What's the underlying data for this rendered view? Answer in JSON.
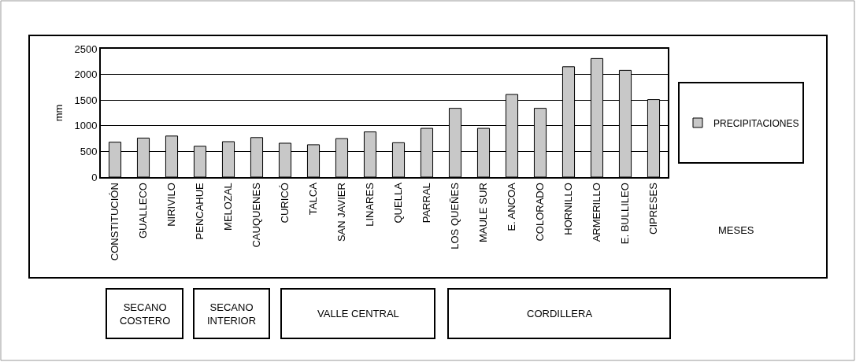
{
  "chart_data": {
    "type": "bar",
    "ylabel": "mm",
    "categories": [
      "CONSTITUCIÓN",
      "GUALLECO",
      "NIRIVILO",
      "PENCAHUE",
      "MELOZAL",
      "CAUQUENES",
      "CURICÓ",
      "TALCA",
      "SAN JAVIER",
      "LINARES",
      "QUELLA",
      "PARRAL",
      "LOS QUEÑES",
      "MAULE SUR",
      "E. ANCOA",
      "COLORADO",
      "HORNILLO",
      "ARMERILLO",
      "E. BULLILEO",
      "CIPRESES"
    ],
    "series": [
      {
        "name": "PRECIPITACIONES",
        "color": "#c8c8c8",
        "values": [
          680,
          760,
          800,
          600,
          690,
          770,
          660,
          630,
          750,
          880,
          670,
          950,
          1340,
          950,
          1610,
          1340,
          2150,
          2310,
          2080,
          1510
        ]
      }
    ],
    "ylim": [
      0,
      2500
    ],
    "yticks": [
      0,
      500,
      1000,
      1500,
      2000,
      2500
    ],
    "grid": "y",
    "legend": "right",
    "annotations": [
      "SECANO\nCOSTERO",
      "SECANO\nINTERIOR",
      "VALLE CENTRAL",
      "CORDILLERA",
      "MESES"
    ]
  }
}
